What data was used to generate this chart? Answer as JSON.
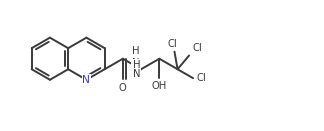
{
  "bg_color": "#ffffff",
  "line_color": "#3a3a3a",
  "text_color": "#3a3a3a",
  "N_color": "#3a3acc",
  "figsize": [
    3.24,
    1.31
  ],
  "dpi": 100,
  "linewidth": 1.4,
  "fontsize": 7.2,
  "s": 0.62,
  "xlim": [
    0,
    9.5
  ],
  "ylim": [
    0.2,
    3.8
  ]
}
